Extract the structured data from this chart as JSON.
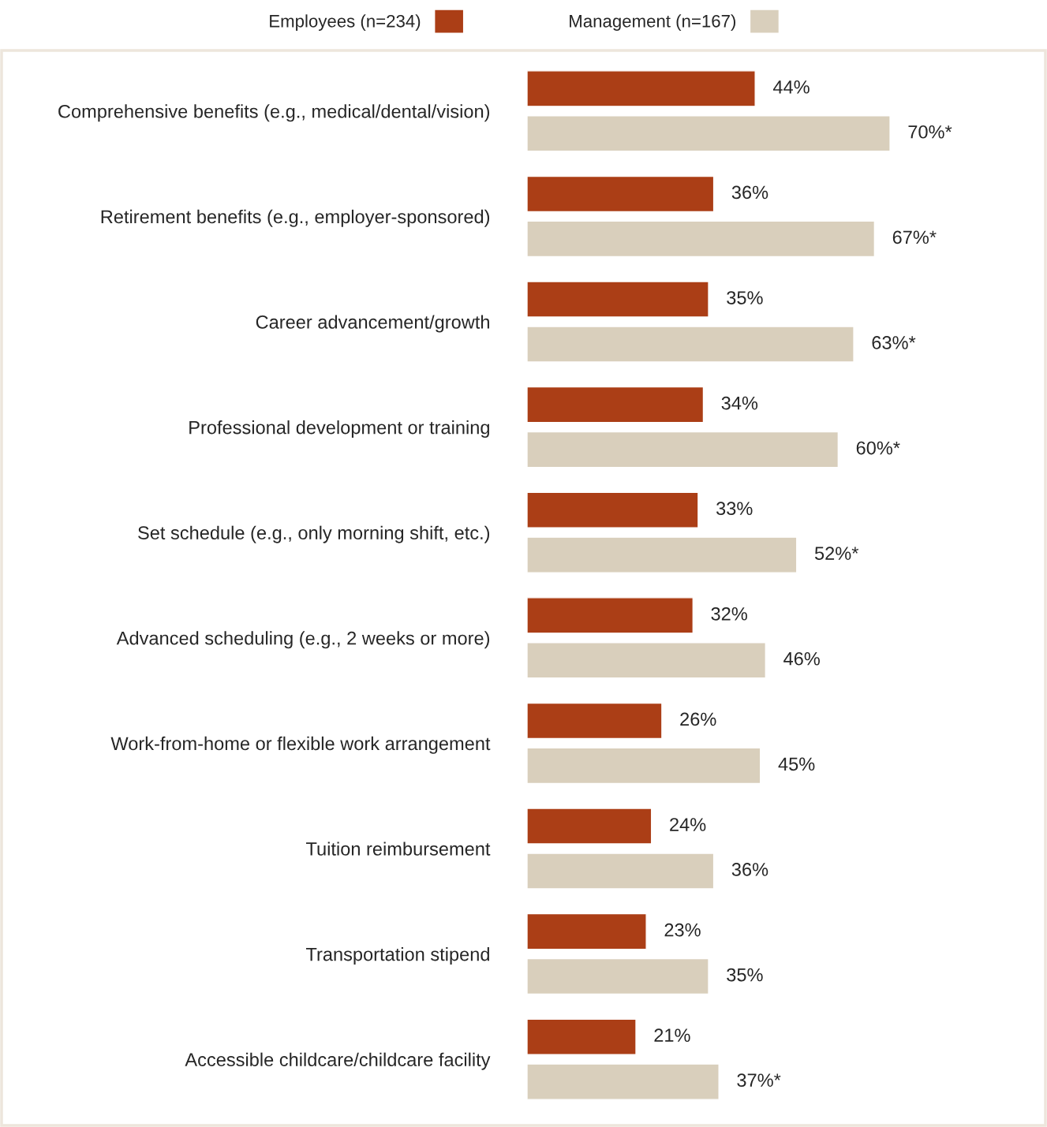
{
  "chart_data": {
    "type": "bar",
    "orientation": "horizontal",
    "categories": [
      "Comprehensive benefits (e.g., medical/dental/vision)",
      "Retirement benefits (e.g., employer-sponsored)",
      "Career advancement/growth",
      "Professional development or training",
      "Set schedule (e.g., only morning shift, etc.)",
      "Advanced scheduling (e.g., 2 weeks or more)",
      "Work-from-home or flexible work arrangement",
      "Tuition reimbursement",
      "Transportation stipend",
      "Accessible childcare/childcare facility"
    ],
    "series": [
      {
        "name": "Employees (n=234)",
        "color": "#ab3e16",
        "values": [
          44,
          36,
          35,
          34,
          33,
          32,
          26,
          24,
          23,
          21
        ],
        "value_labels": [
          "44%",
          "36%",
          "35%",
          "34%",
          "33%",
          "32%",
          "26%",
          "24%",
          "23%",
          "21%"
        ]
      },
      {
        "name": "Management (n=167)",
        "color": "#d9cfbc",
        "values": [
          70,
          67,
          63,
          60,
          52,
          46,
          45,
          36,
          35,
          37
        ],
        "value_labels": [
          "70%*",
          "67%*",
          "63%*",
          "60%*",
          "52%*",
          "46%",
          "45%",
          "36%",
          "35%",
          "37%*"
        ]
      }
    ],
    "legend": "top",
    "grid": false,
    "tick_labels": "y"
  }
}
